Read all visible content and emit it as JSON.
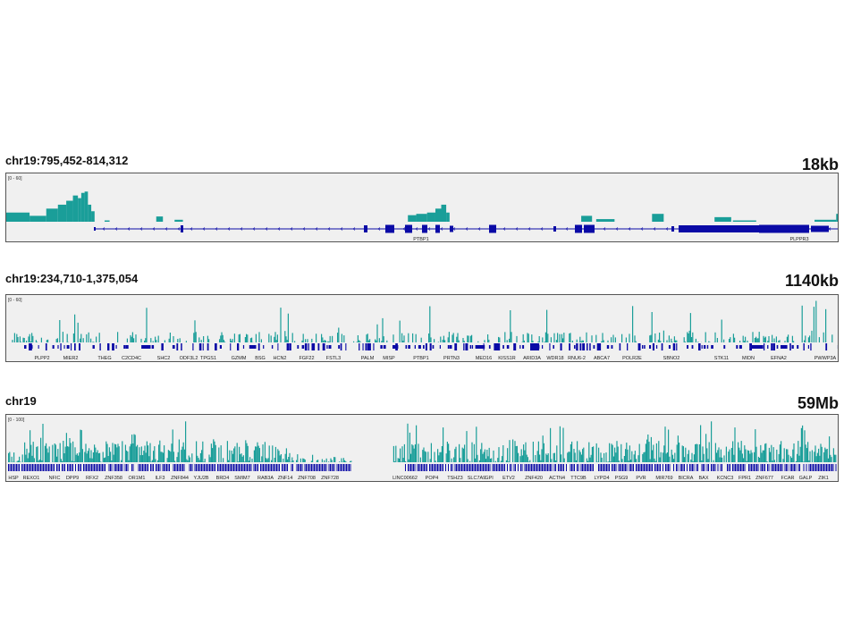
{
  "colors": {
    "coverage": "#1a9e99",
    "gene": "#0a0aa6",
    "background": "#f0f0f0",
    "label": "#222222"
  },
  "panels": [
    {
      "region": "chr19:795,452-814,312",
      "scale": "18kb",
      "range_label": "[0 - 60]",
      "genes": [
        "PTBP1",
        "PLPPR3"
      ]
    },
    {
      "region": "chr19:234,710-1,375,054",
      "scale": "1140kb",
      "range_label": "[0 - 60]",
      "genes": [
        "PLPP2",
        "MIER2",
        "THEG",
        "C2CD4C",
        "SHC2",
        "ODF3L2",
        "TPGS1",
        "GZMM",
        "BSG",
        "HCN2",
        "FGF22",
        "FSTL3",
        "PALM",
        "MISP",
        "PTBP1",
        "PRTN3",
        "MED16",
        "KISS1R",
        "ARID3A",
        "WDR18",
        "RNU6-2",
        "ABCA7",
        "POLR2E",
        "SBNO2",
        "STK11",
        "MIDN",
        "EFNA2",
        "PWWP3A"
      ]
    },
    {
      "region": "chr19",
      "scale": "59Mb",
      "range_label": "[0 - 100]",
      "genes": [
        "HSP",
        "REXO1",
        "NFIC",
        "DPP9",
        "RFX2",
        "ZNF358",
        "OR1M1",
        "ILF3",
        "ZNF844",
        "YJU2B",
        "BRD4",
        "SMIM7",
        "RAB3A",
        "ZNF14",
        "ZNF708",
        "ZNF728",
        "LINC00662",
        "POP4",
        "TSHZ3",
        "SLC7A9",
        "GPI",
        "ETV2",
        "ZNF420",
        "ACTN4",
        "TTC9B",
        "LYPD4",
        "PSG9",
        "PVR",
        "MIR769",
        "BICRA",
        "BAX",
        "KCNC3",
        "FPR1",
        "ZNF677",
        "FCAR",
        "GALP",
        "ZIK1"
      ]
    }
  ],
  "chart_data": [
    {
      "type": "area",
      "title": "chr19:795,452-814,312",
      "ylim": [
        0,
        60
      ],
      "bins": [
        {
          "x": [
            0,
            0.028
          ],
          "y": 14
        },
        {
          "x": [
            0.028,
            0.048
          ],
          "y": 9
        },
        {
          "x": [
            0.048,
            0.062
          ],
          "y": 20
        },
        {
          "x": [
            0.062,
            0.072
          ],
          "y": 26
        },
        {
          "x": [
            0.072,
            0.08
          ],
          "y": 32
        },
        {
          "x": [
            0.08,
            0.086
          ],
          "y": 40
        },
        {
          "x": [
            0.086,
            0.09
          ],
          "y": 36
        },
        {
          "x": [
            0.09,
            0.094
          ],
          "y": 44
        },
        {
          "x": [
            0.094,
            0.098
          ],
          "y": 46
        },
        {
          "x": [
            0.098,
            0.102
          ],
          "y": 26
        },
        {
          "x": [
            0.102,
            0.106
          ],
          "y": 16
        },
        {
          "x": [
            0.118,
            0.124
          ],
          "y": 2
        },
        {
          "x": [
            0.18,
            0.188
          ],
          "y": 8
        },
        {
          "x": [
            0.202,
            0.212
          ],
          "y": 3
        },
        {
          "x": [
            0.482,
            0.492
          ],
          "y": 10
        },
        {
          "x": [
            0.492,
            0.505
          ],
          "y": 12
        },
        {
          "x": [
            0.505,
            0.515
          ],
          "y": 14
        },
        {
          "x": [
            0.515,
            0.522
          ],
          "y": 20
        },
        {
          "x": [
            0.522,
            0.528
          ],
          "y": 26
        },
        {
          "x": [
            0.528,
            0.532
          ],
          "y": 14
        },
        {
          "x": [
            0.69,
            0.703
          ],
          "y": 9
        },
        {
          "x": [
            0.708,
            0.73
          ],
          "y": 4
        },
        {
          "x": [
            0.775,
            0.789
          ],
          "y": 12
        },
        {
          "x": [
            0.85,
            0.87
          ],
          "y": 7
        },
        {
          "x": [
            0.872,
            0.9
          ],
          "y": 2
        },
        {
          "x": [
            0.97,
            0.996
          ],
          "y": 3
        },
        {
          "x": [
            0.996,
            1.0
          ],
          "y": 12
        }
      ]
    },
    {
      "type": "area",
      "title": "chr19:234,710-1,375,054",
      "ylim": [
        0,
        60
      ]
    },
    {
      "type": "area",
      "title": "chr19",
      "ylim": [
        0,
        100
      ]
    }
  ]
}
